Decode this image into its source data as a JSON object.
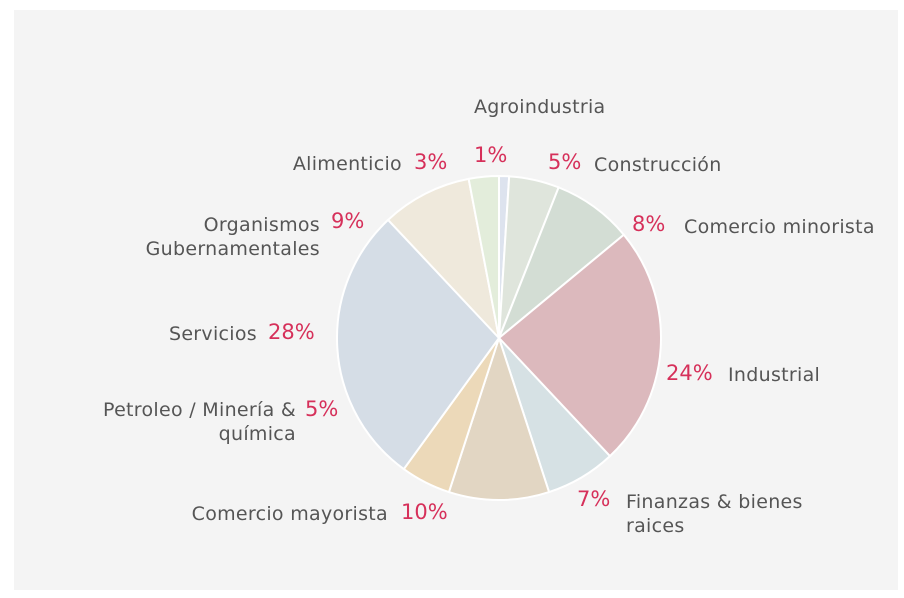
{
  "chart_data": {
    "type": "pie",
    "categories": [
      "Agroindustria",
      "Construcción",
      "Comercio minorista",
      "Industrial",
      "Finanzas & bienes raices",
      "Comercio mayorista",
      "Petroleo / Minería & química",
      "Servicios",
      "Organismos Gubernamentales",
      "Alimenticio"
    ],
    "values": [
      1,
      5,
      8,
      24,
      7,
      10,
      5,
      28,
      9,
      3
    ],
    "value_labels": [
      "1%",
      "5%",
      "8%",
      "24%",
      "7%",
      "10%",
      "5%",
      "28%",
      "9%",
      "3%"
    ],
    "colors": [
      "#dde3ee",
      "#dfe5dc",
      "#d3ddd4",
      "#dcb9bd",
      "#d6e1e4",
      "#e2d6c3",
      "#ecd9b9",
      "#d5dde6",
      "#efe9dc",
      "#e3eddb"
    ]
  }
}
